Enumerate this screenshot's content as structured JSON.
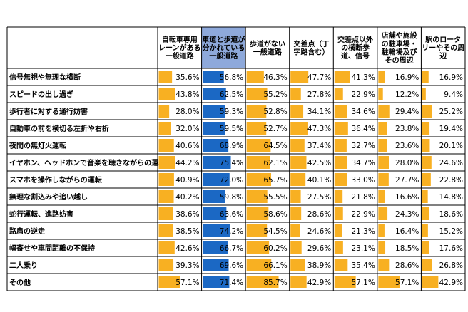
{
  "chart_data": {
    "type": "table",
    "columns": [
      [
        "自転車専用",
        "レーンがある",
        "一般道路"
      ],
      [
        "車道と歩道が",
        "分かれている",
        "一般道路"
      ],
      [
        "歩道がない",
        "一般道路"
      ],
      [
        "交差点（丁",
        "字路含む）"
      ],
      [
        "交差点以外",
        "の横断歩",
        "道、信号"
      ],
      [
        "店舗や施設",
        "の駐車場・",
        "駐輪場及び",
        "その周辺"
      ],
      [
        "駅のロータ",
        "リーやその周",
        "辺"
      ]
    ],
    "rows": [
      "信号無視や無理な横断",
      "スピードの出し過ぎ",
      "歩行者に対する通行妨害",
      "自動車の前を横切る左折や右折",
      "夜間の無灯火運転",
      "イヤホン、ヘッドホンで音楽を聴きながらの運転",
      "スマホを操作しながらの運転",
      "無理な割込みや追い越し",
      "蛇行運転、進路妨害",
      "路肩の逆走",
      "幅寄せや車間距離の不保持",
      "二人乗り",
      "その他"
    ],
    "values": [
      [
        35.6,
        56.8,
        46.3,
        47.7,
        41.3,
        16.9,
        16.9
      ],
      [
        43.8,
        62.5,
        55.2,
        27.8,
        22.9,
        12.2,
        9.4
      ],
      [
        28.0,
        59.3,
        52.8,
        34.1,
        34.6,
        29.4,
        25.2
      ],
      [
        32.0,
        59.5,
        52.7,
        47.3,
        36.4,
        23.8,
        19.4
      ],
      [
        40.6,
        68.9,
        64.5,
        37.4,
        32.7,
        23.6,
        20.1
      ],
      [
        44.2,
        75.4,
        62.1,
        42.5,
        34.7,
        28.0,
        24.6
      ],
      [
        40.9,
        72.0,
        65.7,
        40.1,
        33.0,
        27.7,
        22.8
      ],
      [
        40.2,
        59.8,
        55.5,
        27.5,
        21.8,
        16.6,
        14.8
      ],
      [
        38.6,
        63.6,
        58.6,
        28.6,
        22.9,
        24.3,
        18.6
      ],
      [
        38.5,
        74.2,
        54.5,
        24.6,
        21.3,
        16.4,
        15.2
      ],
      [
        42.6,
        66.7,
        60.2,
        29.6,
        23.1,
        18.5,
        17.6
      ],
      [
        39.3,
        69.6,
        66.1,
        38.9,
        35.4,
        28.6,
        26.8
      ],
      [
        57.1,
        71.4,
        85.7,
        42.9,
        57.1,
        57.1,
        42.9
      ]
    ],
    "unit": "%",
    "highlight_column": 1,
    "colors": {
      "bar": "#F8B022",
      "highlight": "#1B68C4",
      "header_highlight": "#8EA9DB",
      "border": "#000000"
    }
  }
}
